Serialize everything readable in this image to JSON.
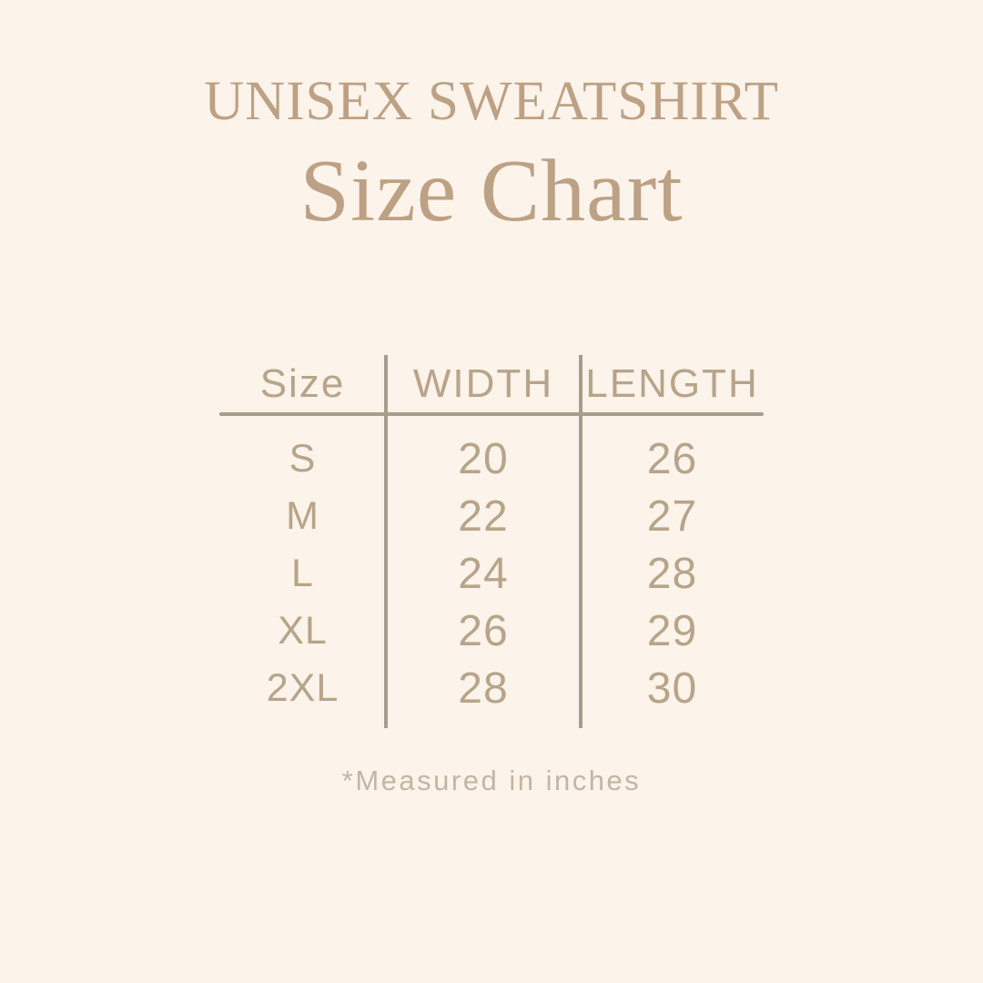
{
  "colors": {
    "background": "#fcf3eb",
    "title_text": "#bda184",
    "table_text": "#b7a489",
    "line": "#a89c8c",
    "footnote_text": "#c4b5a3"
  },
  "header": {
    "title": "UNISEX SWEATSHIRT",
    "subtitle": "Size Chart"
  },
  "size_chart": {
    "columns": [
      "Size",
      "WIDTH",
      "LENGTH"
    ],
    "rows": [
      {
        "size": "S",
        "width": "20",
        "length": "26"
      },
      {
        "size": "M",
        "width": "22",
        "length": "27"
      },
      {
        "size": "L",
        "width": "24",
        "length": "28"
      },
      {
        "size": "XL",
        "width": "26",
        "length": "29"
      },
      {
        "size": "2XL",
        "width": "28",
        "length": "30"
      }
    ],
    "footnote": "*Measured in inches"
  },
  "chart_data": {
    "type": "table",
    "title": "UNISEX SWEATSHIRT Size Chart",
    "columns": [
      "Size",
      "WIDTH",
      "LENGTH"
    ],
    "categories": [
      "S",
      "M",
      "L",
      "XL",
      "2XL"
    ],
    "series": [
      {
        "name": "WIDTH",
        "values": [
          20,
          22,
          24,
          26,
          28
        ]
      },
      {
        "name": "LENGTH",
        "values": [
          26,
          27,
          28,
          29,
          30
        ]
      }
    ],
    "units": "inches",
    "annotations": [
      "*Measured in inches"
    ]
  }
}
